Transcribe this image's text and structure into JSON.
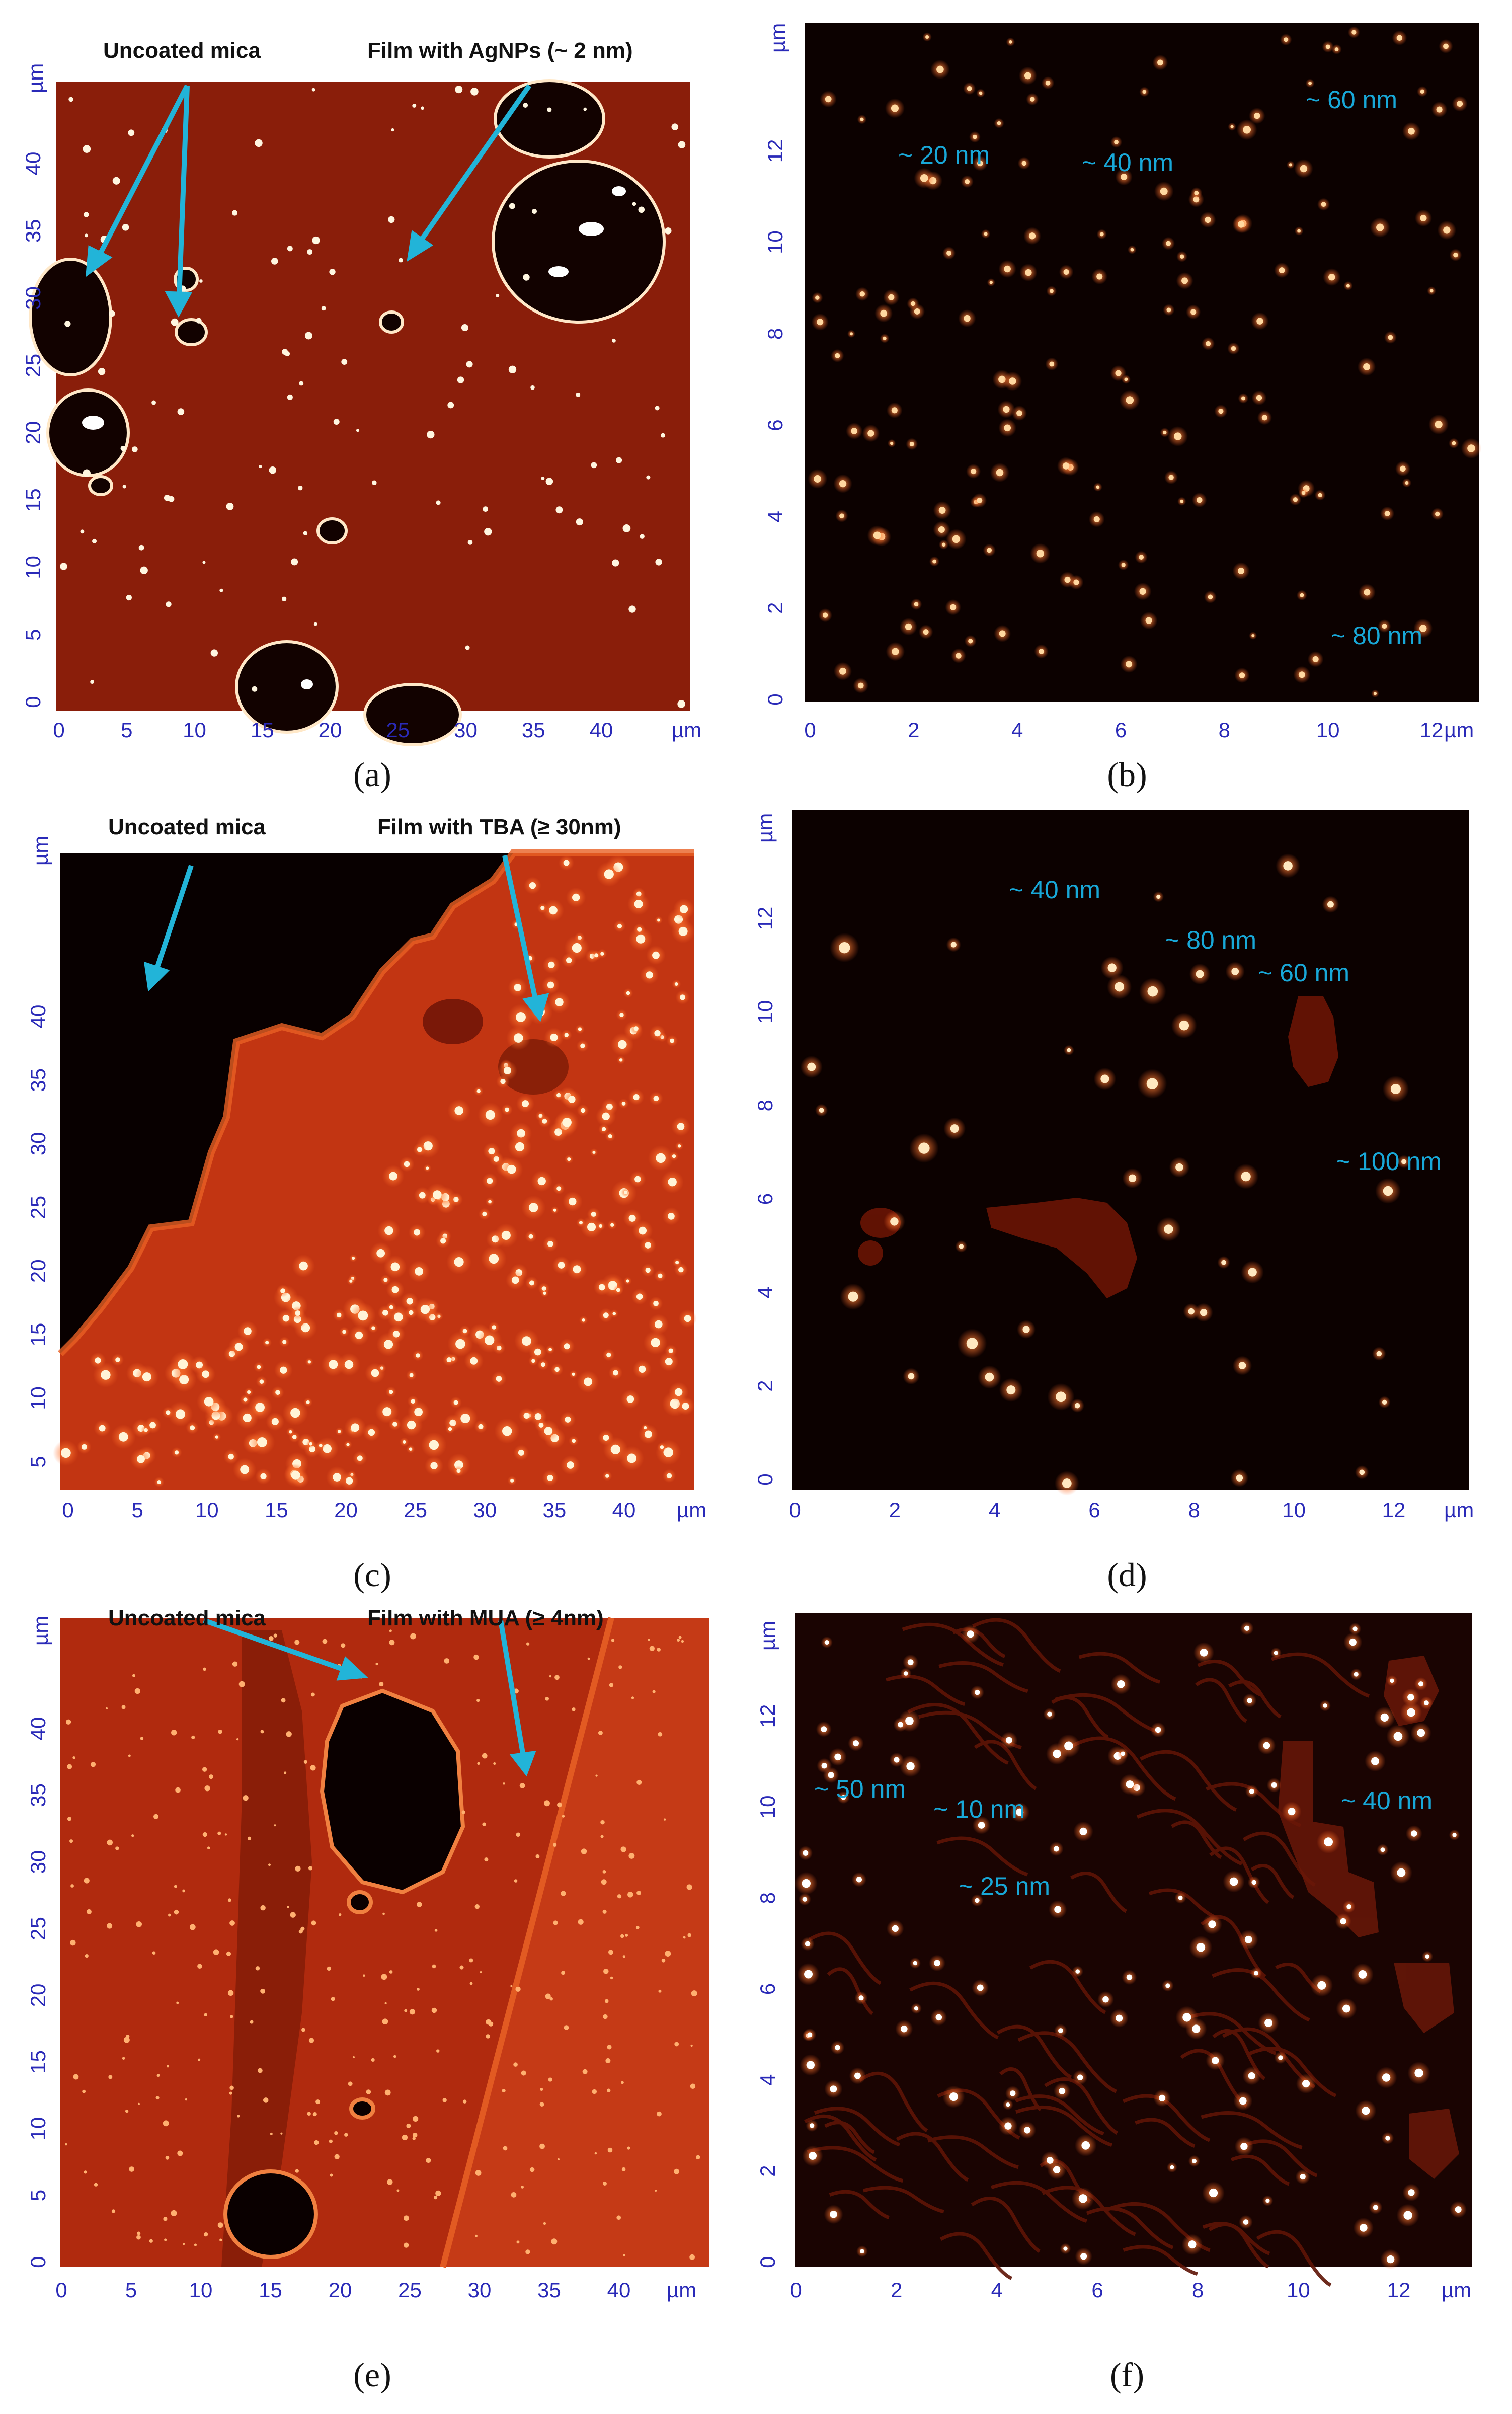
{
  "panels": [
    {
      "id": "a",
      "caption": "(a)",
      "labels": [
        "Uncoated mica",
        "Film with AgNPs (~ 2 nm)"
      ],
      "x_ticks": [
        "0",
        "5",
        "10",
        "15",
        "20",
        "25",
        "30",
        "35",
        "40"
      ],
      "y_ticks": [
        "0",
        "5",
        "10",
        "15",
        "20",
        "25",
        "30",
        "35",
        "40"
      ],
      "unit": "µm",
      "size_labels": []
    },
    {
      "id": "b",
      "caption": "(b)",
      "labels": [],
      "x_ticks": [
        "0",
        "2",
        "4",
        "6",
        "8",
        "10",
        "12"
      ],
      "y_ticks": [
        "0",
        "2",
        "4",
        "6",
        "8",
        "10",
        "12"
      ],
      "unit": "µm",
      "size_labels": [
        "~ 20 nm",
        "~ 40 nm",
        "~ 60 nm",
        "~ 80 nm"
      ]
    },
    {
      "id": "c",
      "caption": "(c)",
      "labels": [
        "Uncoated mica",
        "Film with TBA (≥ 30nm)"
      ],
      "x_ticks": [
        "0",
        "5",
        "10",
        "15",
        "20",
        "25",
        "30",
        "35",
        "40"
      ],
      "y_ticks": [
        "5",
        "10",
        "15",
        "20",
        "25",
        "30",
        "35",
        "40"
      ],
      "unit": "µm",
      "size_labels": []
    },
    {
      "id": "d",
      "caption": "(d)",
      "labels": [],
      "x_ticks": [
        "0",
        "2",
        "4",
        "6",
        "8",
        "10",
        "12"
      ],
      "y_ticks": [
        "0",
        "2",
        "4",
        "6",
        "8",
        "10",
        "12"
      ],
      "unit": "µm",
      "size_labels": [
        "~ 40 nm",
        "~ 80 nm",
        "~ 60 nm",
        "~ 100 nm"
      ]
    },
    {
      "id": "e",
      "caption": "(e)",
      "labels": [
        "Uncoated mica",
        "Film with MUA (≥ 4nm)"
      ],
      "x_ticks": [
        "0",
        "5",
        "10",
        "15",
        "20",
        "25",
        "30",
        "35",
        "40"
      ],
      "y_ticks": [
        "0",
        "5",
        "10",
        "15",
        "20",
        "25",
        "30",
        "35",
        "40"
      ],
      "unit": "µm",
      "size_labels": []
    },
    {
      "id": "f",
      "caption": "(f)",
      "labels": [],
      "x_ticks": [
        "0",
        "2",
        "4",
        "6",
        "8",
        "10",
        "12"
      ],
      "y_ticks": [
        "0",
        "2",
        "4",
        "6",
        "8",
        "10",
        "12"
      ],
      "unit": "µm",
      "size_labels": [
        "~ 50 nm",
        "~ 10 nm",
        "~ 25 nm",
        "~ 40 nm"
      ]
    }
  ],
  "colors": {
    "film_dark": "#8a1c08",
    "film_mid": "#b83012",
    "film_bright": "#e8541c",
    "mica_black": "#0a0000",
    "particle": "#fff4d8",
    "arrow": "#22b4d8",
    "tick_text": "#2a2ab8",
    "annotation_text": "#18a8d8"
  }
}
